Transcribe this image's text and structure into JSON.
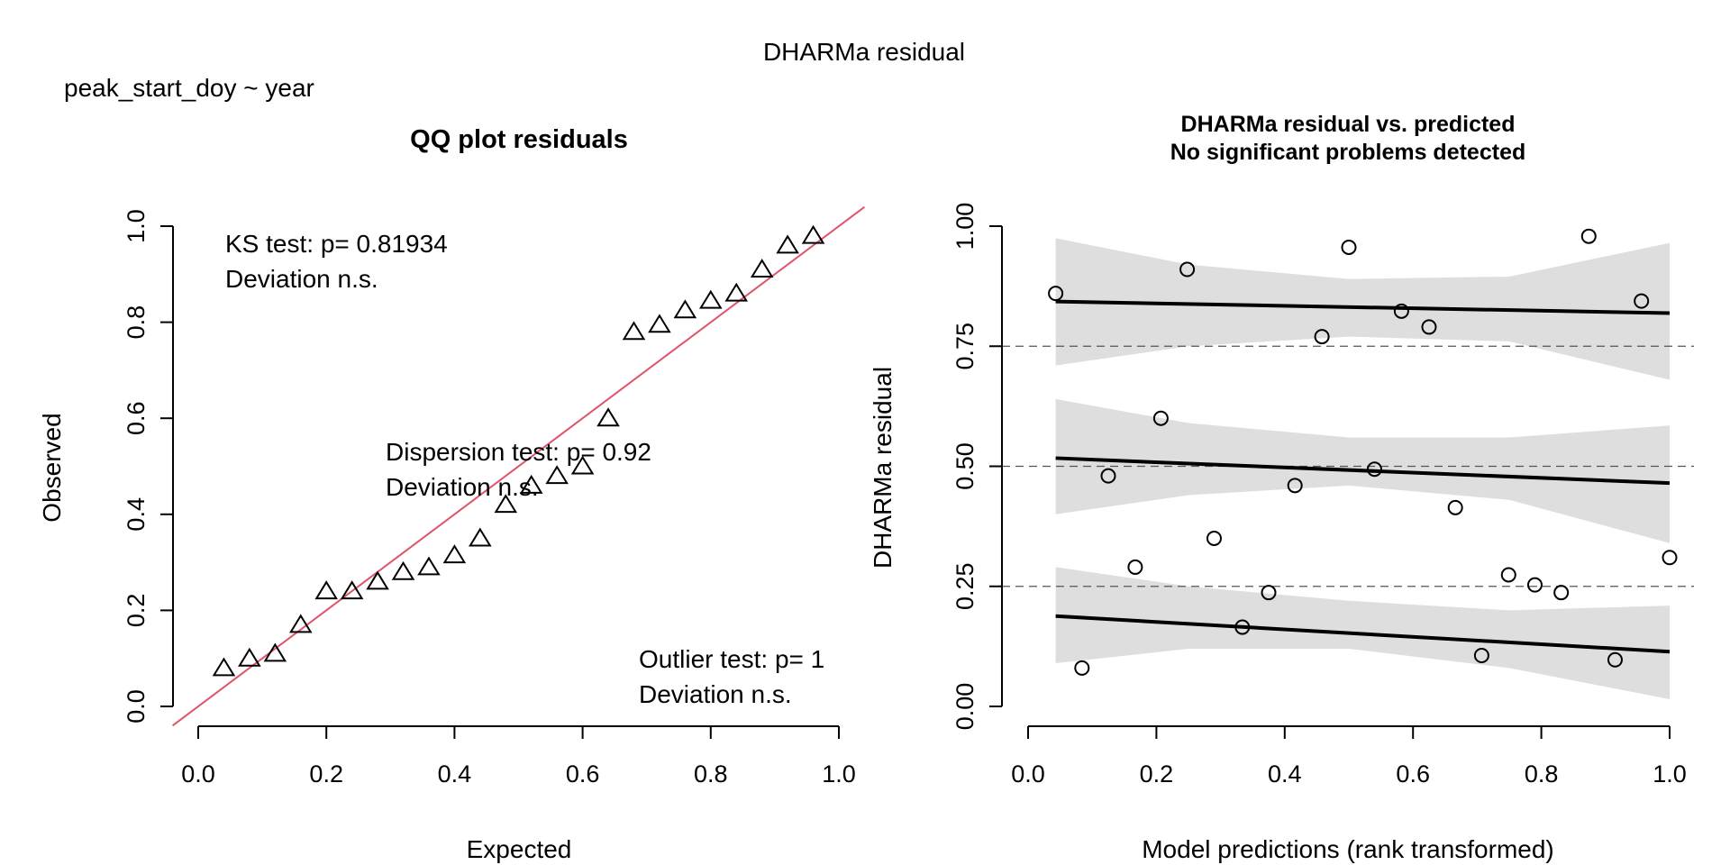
{
  "chart_data": [
    {
      "type": "scatter",
      "subtype": "qq",
      "title": "QQ plot residuals",
      "xlabel": "Expected",
      "ylabel": "Observed",
      "xlim": [
        0,
        1
      ],
      "ylim": [
        0,
        1
      ],
      "xticks": [
        "0.0",
        "0.2",
        "0.4",
        "0.6",
        "0.8",
        "1.0"
      ],
      "yticks": [
        "0.0",
        "0.2",
        "0.4",
        "0.6",
        "0.8",
        "1.0"
      ],
      "grid": false,
      "marker": "triangle",
      "reference_line": {
        "slope": 1,
        "intercept": 0,
        "color": "#df536b"
      },
      "points": {
        "x": [
          0.04,
          0.08,
          0.12,
          0.16,
          0.2,
          0.24,
          0.28,
          0.32,
          0.36,
          0.4,
          0.44,
          0.48,
          0.52,
          0.56,
          0.6,
          0.64,
          0.68,
          0.72,
          0.76,
          0.8,
          0.84,
          0.88,
          0.92,
          0.96
        ],
        "y": [
          0.08,
          0.1,
          0.11,
          0.17,
          0.24,
          0.24,
          0.26,
          0.28,
          0.29,
          0.315,
          0.35,
          0.42,
          0.46,
          0.48,
          0.5,
          0.6,
          0.78,
          0.795,
          0.825,
          0.845,
          0.86,
          0.91,
          0.96,
          0.98
        ]
      },
      "annotations": [
        {
          "id": "ks",
          "lines": [
            "KS test: p= 0.81934",
            "Deviation  n.s."
          ]
        },
        {
          "id": "dispersion",
          "lines": [
            "Dispersion test: p= 0.92",
            "Deviation  n.s."
          ]
        },
        {
          "id": "outlier",
          "lines": [
            "Outlier test: p= 1",
            "Deviation  n.s."
          ]
        }
      ]
    },
    {
      "type": "scatter",
      "subtype": "residual-vs-predicted",
      "title": "DHARMa residual vs. predicted",
      "subtitle": "No significant problems detected",
      "xlabel": "Model predictions (rank transformed)",
      "ylabel": "DHARMa residual",
      "xlim": [
        0,
        1
      ],
      "ylim": [
        0,
        1
      ],
      "xticks": [
        "0.0",
        "0.2",
        "0.4",
        "0.6",
        "0.8",
        "1.0"
      ],
      "yticks": [
        "0.00",
        "0.25",
        "0.50",
        "0.75",
        "1.00"
      ],
      "grid": false,
      "marker": "circle",
      "reference_lines": [
        0.25,
        0.5,
        0.75
      ],
      "points": {
        "x": [
          0.043,
          0.084,
          0.125,
          0.167,
          0.207,
          0.248,
          0.29,
          0.334,
          0.375,
          0.416,
          0.458,
          0.5,
          0.54,
          0.582,
          0.625,
          0.666,
          0.707,
          0.749,
          0.79,
          0.831,
          0.874,
          0.915,
          0.956,
          1.0
        ],
        "y": [
          0.86,
          0.08,
          0.48,
          0.29,
          0.6,
          0.91,
          0.35,
          0.165,
          0.237,
          0.46,
          0.77,
          0.956,
          0.494,
          0.823,
          0.79,
          0.414,
          0.106,
          0.274,
          0.253,
          0.237,
          0.979,
          0.097,
          0.844,
          0.31
        ]
      },
      "quantile_fits": [
        {
          "quantile": 0.75,
          "x": [
            0.043,
            1.0
          ],
          "y": [
            0.843,
            0.819
          ],
          "band": {
            "x": [
              0.043,
              0.25,
              0.5,
              0.75,
              1.0
            ],
            "upper": [
              0.975,
              0.92,
              0.89,
              0.895,
              0.965
            ],
            "lower": [
              0.71,
              0.75,
              0.77,
              0.76,
              0.68
            ]
          }
        },
        {
          "quantile": 0.5,
          "x": [
            0.043,
            1.0
          ],
          "y": [
            0.517,
            0.465
          ],
          "band": {
            "x": [
              0.043,
              0.25,
              0.5,
              0.75,
              1.0
            ],
            "upper": [
              0.64,
              0.59,
              0.56,
              0.56,
              0.585
            ],
            "lower": [
              0.4,
              0.44,
              0.46,
              0.43,
              0.34
            ]
          }
        },
        {
          "quantile": 0.25,
          "x": [
            0.043,
            1.0
          ],
          "y": [
            0.188,
            0.114
          ],
          "band": {
            "x": [
              0.043,
              0.25,
              0.5,
              0.75,
              1.0
            ],
            "upper": [
              0.29,
              0.25,
              0.22,
              0.2,
              0.21
            ],
            "lower": [
              0.09,
              0.12,
              0.12,
              0.08,
              0.015
            ]
          }
        }
      ]
    }
  ],
  "figure": {
    "title": "DHARMa residual",
    "formula": "peak_start_doy ~ year"
  }
}
